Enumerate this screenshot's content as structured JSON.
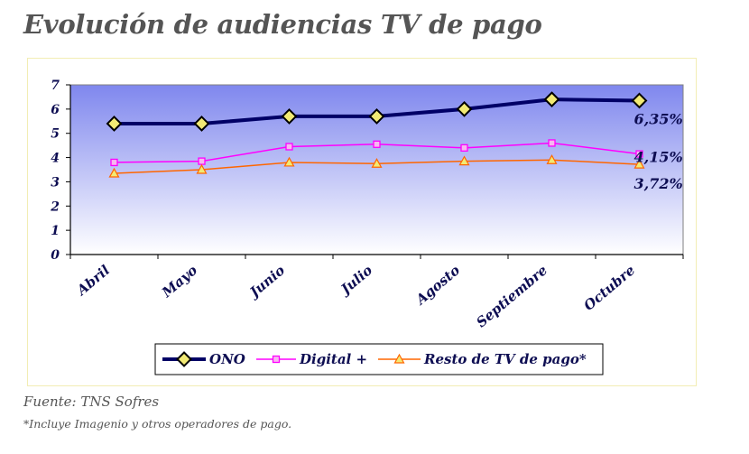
{
  "page": {
    "title": "Evolución de audiencias TV de pago",
    "source": "Fuente: TNS Sofres",
    "note": "*Incluye Imagenio y otros operadores de pago."
  },
  "chart_data": {
    "type": "line",
    "title": "Evolución de audiencias TV de pago",
    "categories": [
      "Abril",
      "Mayo",
      "Junio",
      "Julio",
      "Agosto",
      "Septiembre",
      "Octubre"
    ],
    "yticks": [
      "0",
      "1",
      "2",
      "3",
      "4",
      "5",
      "6",
      "7"
    ],
    "ylim": [
      0,
      7
    ],
    "grid": false,
    "legend_position": "bottom",
    "series": [
      {
        "name": "ONO",
        "values": [
          5.4,
          5.4,
          5.7,
          5.7,
          6.0,
          6.4,
          6.35
        ],
        "color": "#000066",
        "marker": "diamond",
        "end_label": "6,35%"
      },
      {
        "name": "Digital +",
        "values": [
          3.8,
          3.85,
          4.45,
          4.55,
          4.4,
          4.6,
          4.15
        ],
        "color": "#ff00ff",
        "marker": "square",
        "end_label": "4,15%"
      },
      {
        "name": "Resto de TV de pago*",
        "values": [
          3.35,
          3.5,
          3.8,
          3.75,
          3.85,
          3.9,
          3.72
        ],
        "color": "#ff6600",
        "marker": "triangle",
        "end_label": "3,72%"
      }
    ],
    "colors": {
      "plot_gradient_top": "#7f87ee",
      "plot_gradient_bottom": "#ffffff",
      "axis": "#000000"
    }
  }
}
